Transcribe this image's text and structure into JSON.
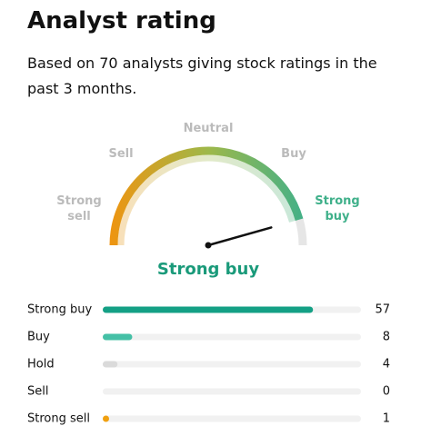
{
  "header": {
    "title": "Analyst rating",
    "subtitle_start": "Based on",
    "analyst_count": 70,
    "subtitle_end": "analysts giving stock ratings in the past 3 months."
  },
  "gauge": {
    "labels": [
      "Strong sell",
      "Sell",
      "Neutral",
      "Buy",
      "Strong buy"
    ],
    "range": [
      1,
      5
    ],
    "score": 4.65,
    "result": "Strong buy",
    "colors": [
      "#ef9410",
      "#9eb84a",
      "#3fb08a"
    ]
  },
  "ratings": {
    "xlim": [
      0,
      70
    ],
    "rows": [
      {
        "label": "Strong buy",
        "value": 57,
        "color": "#14a085"
      },
      {
        "label": "Buy",
        "value": 8,
        "color": "#45c0a6"
      },
      {
        "label": "Hold",
        "value": 4,
        "color": "#dadada"
      },
      {
        "label": "Sell",
        "value": 0,
        "color": "#dadada"
      },
      {
        "label": "Strong sell",
        "value": 1,
        "color": "#f0a010"
      }
    ]
  }
}
